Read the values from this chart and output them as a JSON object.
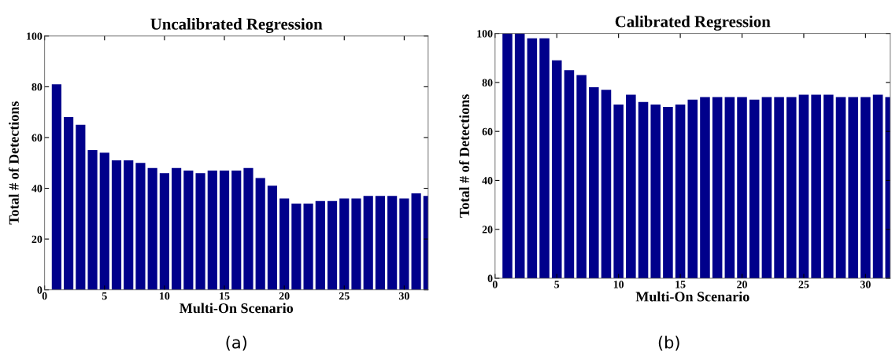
{
  "chart_data": [
    {
      "type": "bar",
      "title": "Uncalibrated Regression",
      "xlabel": "Multi-On Scenario",
      "ylabel": "Total # of Detections",
      "annotations": [
        "(a)"
      ],
      "color": "#00008b",
      "x": [
        1,
        2,
        3,
        4,
        5,
        6,
        7,
        8,
        9,
        10,
        11,
        12,
        13,
        14,
        15,
        16,
        17,
        18,
        19,
        20,
        21,
        22,
        23,
        24,
        25,
        26,
        27,
        28,
        29,
        30,
        31,
        32
      ],
      "values": [
        81,
        68,
        65,
        55,
        54,
        51,
        51,
        50,
        48,
        46,
        48,
        47,
        46,
        47,
        47,
        47,
        48,
        44,
        41,
        36,
        34,
        34,
        35,
        35,
        36,
        36,
        37,
        37,
        37,
        36,
        38,
        37
      ],
      "xlim": [
        0,
        32
      ],
      "xticks": [
        0,
        5,
        10,
        15,
        20,
        25,
        30
      ],
      "ylim": [
        0,
        100
      ],
      "yticks": [
        0,
        20,
        40,
        60,
        80,
        100
      ]
    },
    {
      "type": "bar",
      "title": "Calibrated Regression",
      "xlabel": "Multi-On Scenario",
      "ylabel": "Total # of Detections",
      "annotations": [
        "(b)"
      ],
      "color": "#00008b",
      "x": [
        1,
        2,
        3,
        4,
        5,
        6,
        7,
        8,
        9,
        10,
        11,
        12,
        13,
        14,
        15,
        16,
        17,
        18,
        19,
        20,
        21,
        22,
        23,
        24,
        25,
        26,
        27,
        28,
        29,
        30,
        31,
        32
      ],
      "values": [
        100,
        100,
        98,
        98,
        89,
        85,
        83,
        78,
        77,
        71,
        75,
        72,
        71,
        70,
        71,
        73,
        74,
        74,
        74,
        74,
        73,
        74,
        74,
        74,
        75,
        75,
        75,
        74,
        74,
        74,
        75,
        74
      ],
      "xlim": [
        0,
        32
      ],
      "xticks": [
        0,
        5,
        10,
        15,
        20,
        25,
        30
      ],
      "ylim": [
        0,
        100
      ],
      "yticks": [
        0,
        20,
        40,
        60,
        80,
        100
      ]
    }
  ]
}
